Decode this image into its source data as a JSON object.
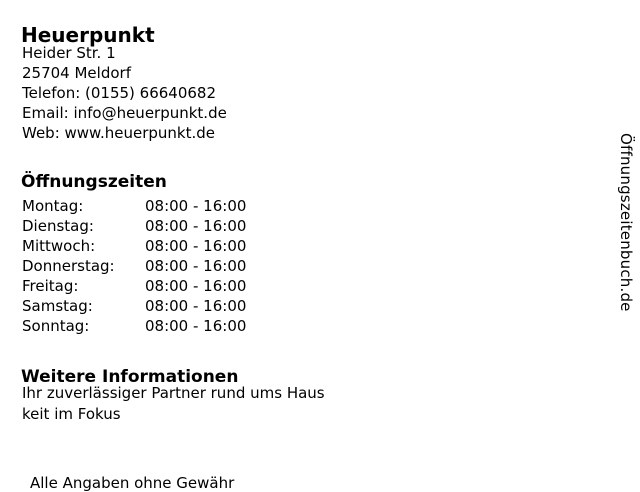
{
  "colors": {
    "text": "#000000",
    "background": "#ffffff"
  },
  "business": {
    "name": "Heuerpunkt",
    "contact_lines": [
      "Heider Str. 1",
      "25704 Meldorf",
      "Telefon: (0155) 66640682",
      "Email: info@heuerpunkt.de",
      "Web: www.heuerpunkt.de"
    ]
  },
  "hours": {
    "heading": "Öffnungszeiten",
    "rows": [
      {
        "day": "Montag:",
        "time": "08:00 - 16:00"
      },
      {
        "day": "Dienstag:",
        "time": "08:00 - 16:00"
      },
      {
        "day": "Mittwoch:",
        "time": "08:00 - 16:00"
      },
      {
        "day": "Donnerstag:",
        "time": "08:00 - 16:00"
      },
      {
        "day": "Freitag:",
        "time": "08:00 - 16:00"
      },
      {
        "day": "Samstag:",
        "time": "08:00 - 16:00"
      },
      {
        "day": "Sonntag:",
        "time": "08:00 - 16:00"
      }
    ]
  },
  "info": {
    "heading": "Weitere Informationen",
    "lines": [
      "Ihr zuverlässiger Partner rund ums Haus",
      "keit im Fokus"
    ]
  },
  "footer": {
    "clipped_line": "Alle Angaben ohne Gewähr"
  },
  "watermark": {
    "text": "Öffnungszeitenbuch.de"
  }
}
